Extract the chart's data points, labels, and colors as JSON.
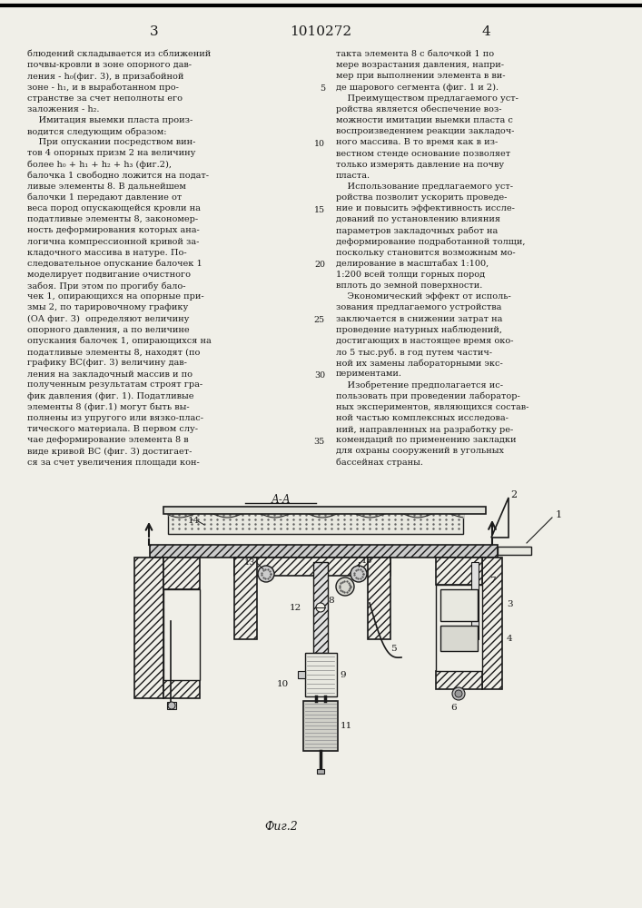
{
  "page_number_left": "3",
  "page_number_center": "1010272",
  "page_number_right": "4",
  "col1_text": [
    "блюдений складывается из сближений",
    "почвы-кровли в зоне опорного дав-",
    "ления - h₀(фиг. 3), в призабойной",
    "зоне - h₁, и в выработанном про-",
    "странстве за счет неполноты его",
    "заложения - h₂.",
    "    Имитация выемки пласта произ-",
    "водится следующим образом:",
    "    При опускании посредством вин-",
    "тов 4 опорных призм 2 на величину",
    "более h₀ + h₁ + h₂ + h₃ (фиг.2),",
    "балочка 1 свободно ложится на подат-",
    "ливые элементы 8. В дальнейшем",
    "балочки 1 передают давление от",
    "веса пород опускающейся кровли на",
    "податливые элементы 8, закономер-",
    "ность деформирования которых ана-",
    "логична компрессионной кривой за-",
    "кладочного массива в натуре. По-",
    "следовательное опускание балочек 1",
    "моделирует подвигание очистного",
    "забоя. При этом по прогибу бало-",
    "чек 1, опирающихся на опорные при-",
    "змы 2, по тарировочному графику",
    "(ОА фиг. 3)  определяют величину",
    "опорного давления, а по величине",
    "опускания балочек 1, опирающихся на",
    "податливые элементы 8, находят (по",
    "графику ВС(фиг. 3) величину дав-",
    "ления на закладочный массив и по",
    "полученным результатам строят гра-",
    "фик давления (фиг. 1). Податливые",
    "элементы 8 (фиг.1) могут быть вы-",
    "полнены из упругого или вязко-плас-",
    "тического материала. В первом слу-",
    "чае деформирование элемента 8 в",
    "виде кривой ВС (фиг. 3) достигает-",
    "ся за счет увеличения площади кон-"
  ],
  "col2_text": [
    "такта элемента 8 с балочкой 1 по",
    "мере возрастания давления, напри-",
    "мер при выполнении элемента в ви-",
    "де шарового сегмента (фиг. 1 и 2).",
    "    Преимуществом предлагаемого уст-",
    "ройства является обеспечение воз-",
    "можности имитации выемки пласта с",
    "воспроизведением реакции закладоч-",
    "ного массива. В то время как в из-",
    "вестном стенде основание позволяет",
    "только измерять давление на почву",
    "пласта.",
    "    Использование предлагаемого уст-",
    "ройства позволит ускорить проведе-",
    "ние и повысить эффективность иссле-",
    "дований по установлению влияния",
    "параметров закладочных работ на",
    "деформирование подработанной толщи,",
    "поскольку становится возможным мо-",
    "делирование в масштабах 1:100,",
    "1:200 всей толщи горных пород",
    "вплоть до земной поверхности.",
    "    Экономический эффект от исполь-",
    "зования предлагаемого устройства",
    "заключается в снижении затрат на",
    "проведение натурных наблюдений,",
    "достигающих в настоящее время око-",
    "ло 5 тыс.руб. в год путем частич-",
    "ной их замены лабораторными экс-",
    "периментами.",
    "    Изобретение предполагается ис-",
    "пользовать при проведении лаборатор-",
    "ных экспериментов, являющихся состав-",
    "ной частью комплексных исследова-",
    "ний, направленных на разработку ре-",
    "комендаций по применению закладки",
    "для охраны сооружений в угольных",
    "бассейнах страны."
  ],
  "line_nums": [
    [
      3,
      "5"
    ],
    [
      8,
      "10"
    ],
    [
      14,
      "15"
    ],
    [
      19,
      "20"
    ],
    [
      24,
      "25"
    ],
    [
      29,
      "30"
    ],
    [
      35,
      "35"
    ]
  ],
  "fig_caption": "Фиг.2",
  "bg_color": "#f0efe8",
  "text_color": "#1a1a1a",
  "line_color": "#1a1a1a",
  "hatch_color": "#333333"
}
